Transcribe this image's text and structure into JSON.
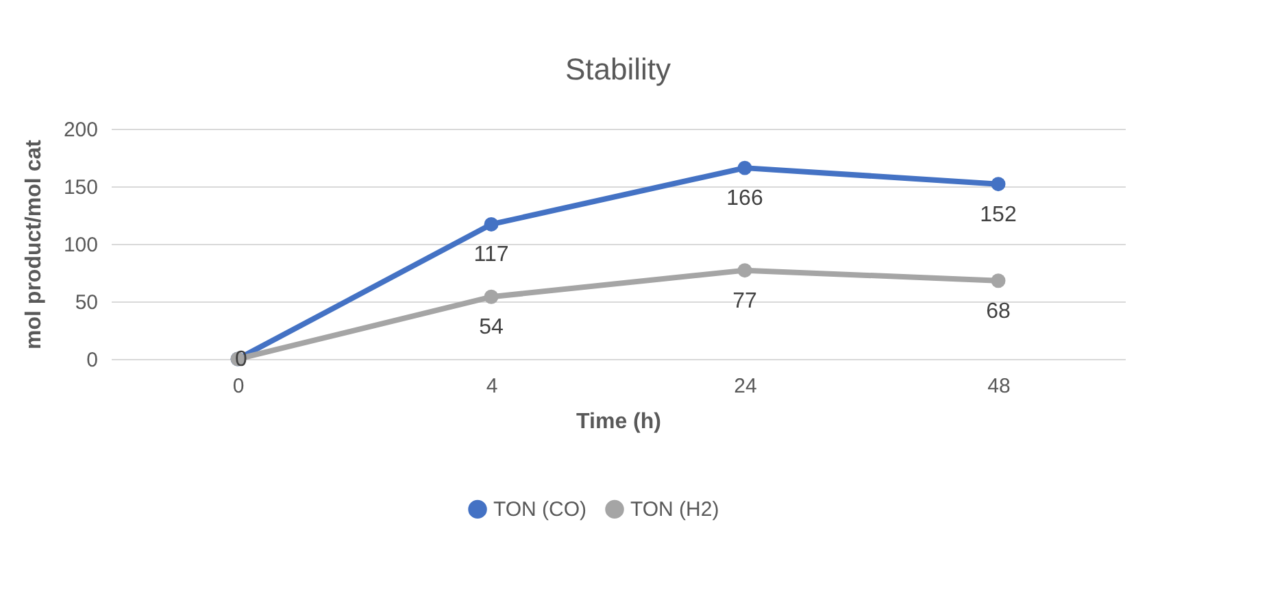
{
  "chart_data": {
    "type": "line",
    "title": "Stability",
    "xlabel": "Time (h)",
    "ylabel": "mol product/mol cat",
    "categories": [
      "0",
      "4",
      "24",
      "48"
    ],
    "series": [
      {
        "name": "TON (CO)",
        "color": "#4472c4",
        "values": [
          0,
          117,
          166,
          152
        ],
        "value_labels": [
          "0",
          "117",
          "166",
          "152"
        ]
      },
      {
        "name": "TON (H2)",
        "color": "#a5a5a5",
        "values": [
          0,
          54,
          77,
          68
        ],
        "value_labels": [
          null,
          "54",
          "77",
          "68"
        ]
      }
    ],
    "ylim": [
      0,
      200
    ],
    "yticks": [
      0,
      50,
      100,
      150,
      200
    ],
    "grid": "y",
    "legend": "bottom",
    "marker": "circle"
  }
}
